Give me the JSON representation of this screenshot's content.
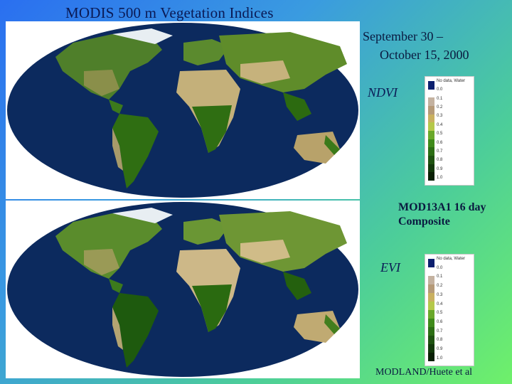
{
  "title": "MODIS 500 m Vegetation Indices",
  "date_range": {
    "line1": "September 30 –",
    "line2": "October 15, 2000"
  },
  "product": {
    "line1": "MOD13A1 16 day",
    "line2": "Composite"
  },
  "credit": "MODLAND/Huete et al",
  "maps": {
    "ndvi": {
      "label": "NDVI"
    },
    "evi": {
      "label": "EVI"
    }
  },
  "legends": {
    "ndvi": {
      "entries": [
        "No data, Water",
        "0.0",
        "0.1",
        "0.2",
        "0.3",
        "0.4",
        "0.5",
        "0.6",
        "0.7",
        "0.8",
        "0.9",
        "1.0"
      ]
    },
    "evi": {
      "entries": [
        "No data, Water",
        "0.0",
        "0.1",
        "0.2",
        "0.3",
        "0.4",
        "0.5",
        "0.6",
        "0.7",
        "0.8",
        "0.9",
        "1.0"
      ]
    }
  },
  "colors": {
    "ocean": "#0c2a5e",
    "background_start": "#2a6ff0",
    "background_end": "#6ff06a",
    "ramp": [
      "#0c1f6e",
      "#ffffff",
      "#c4b2a0",
      "#b59a78",
      "#c9b060",
      "#b5c84a",
      "#6aa82a",
      "#3f8a1a",
      "#2c6e14",
      "#1e5210",
      "#12380a",
      "#0a2005"
    ]
  }
}
